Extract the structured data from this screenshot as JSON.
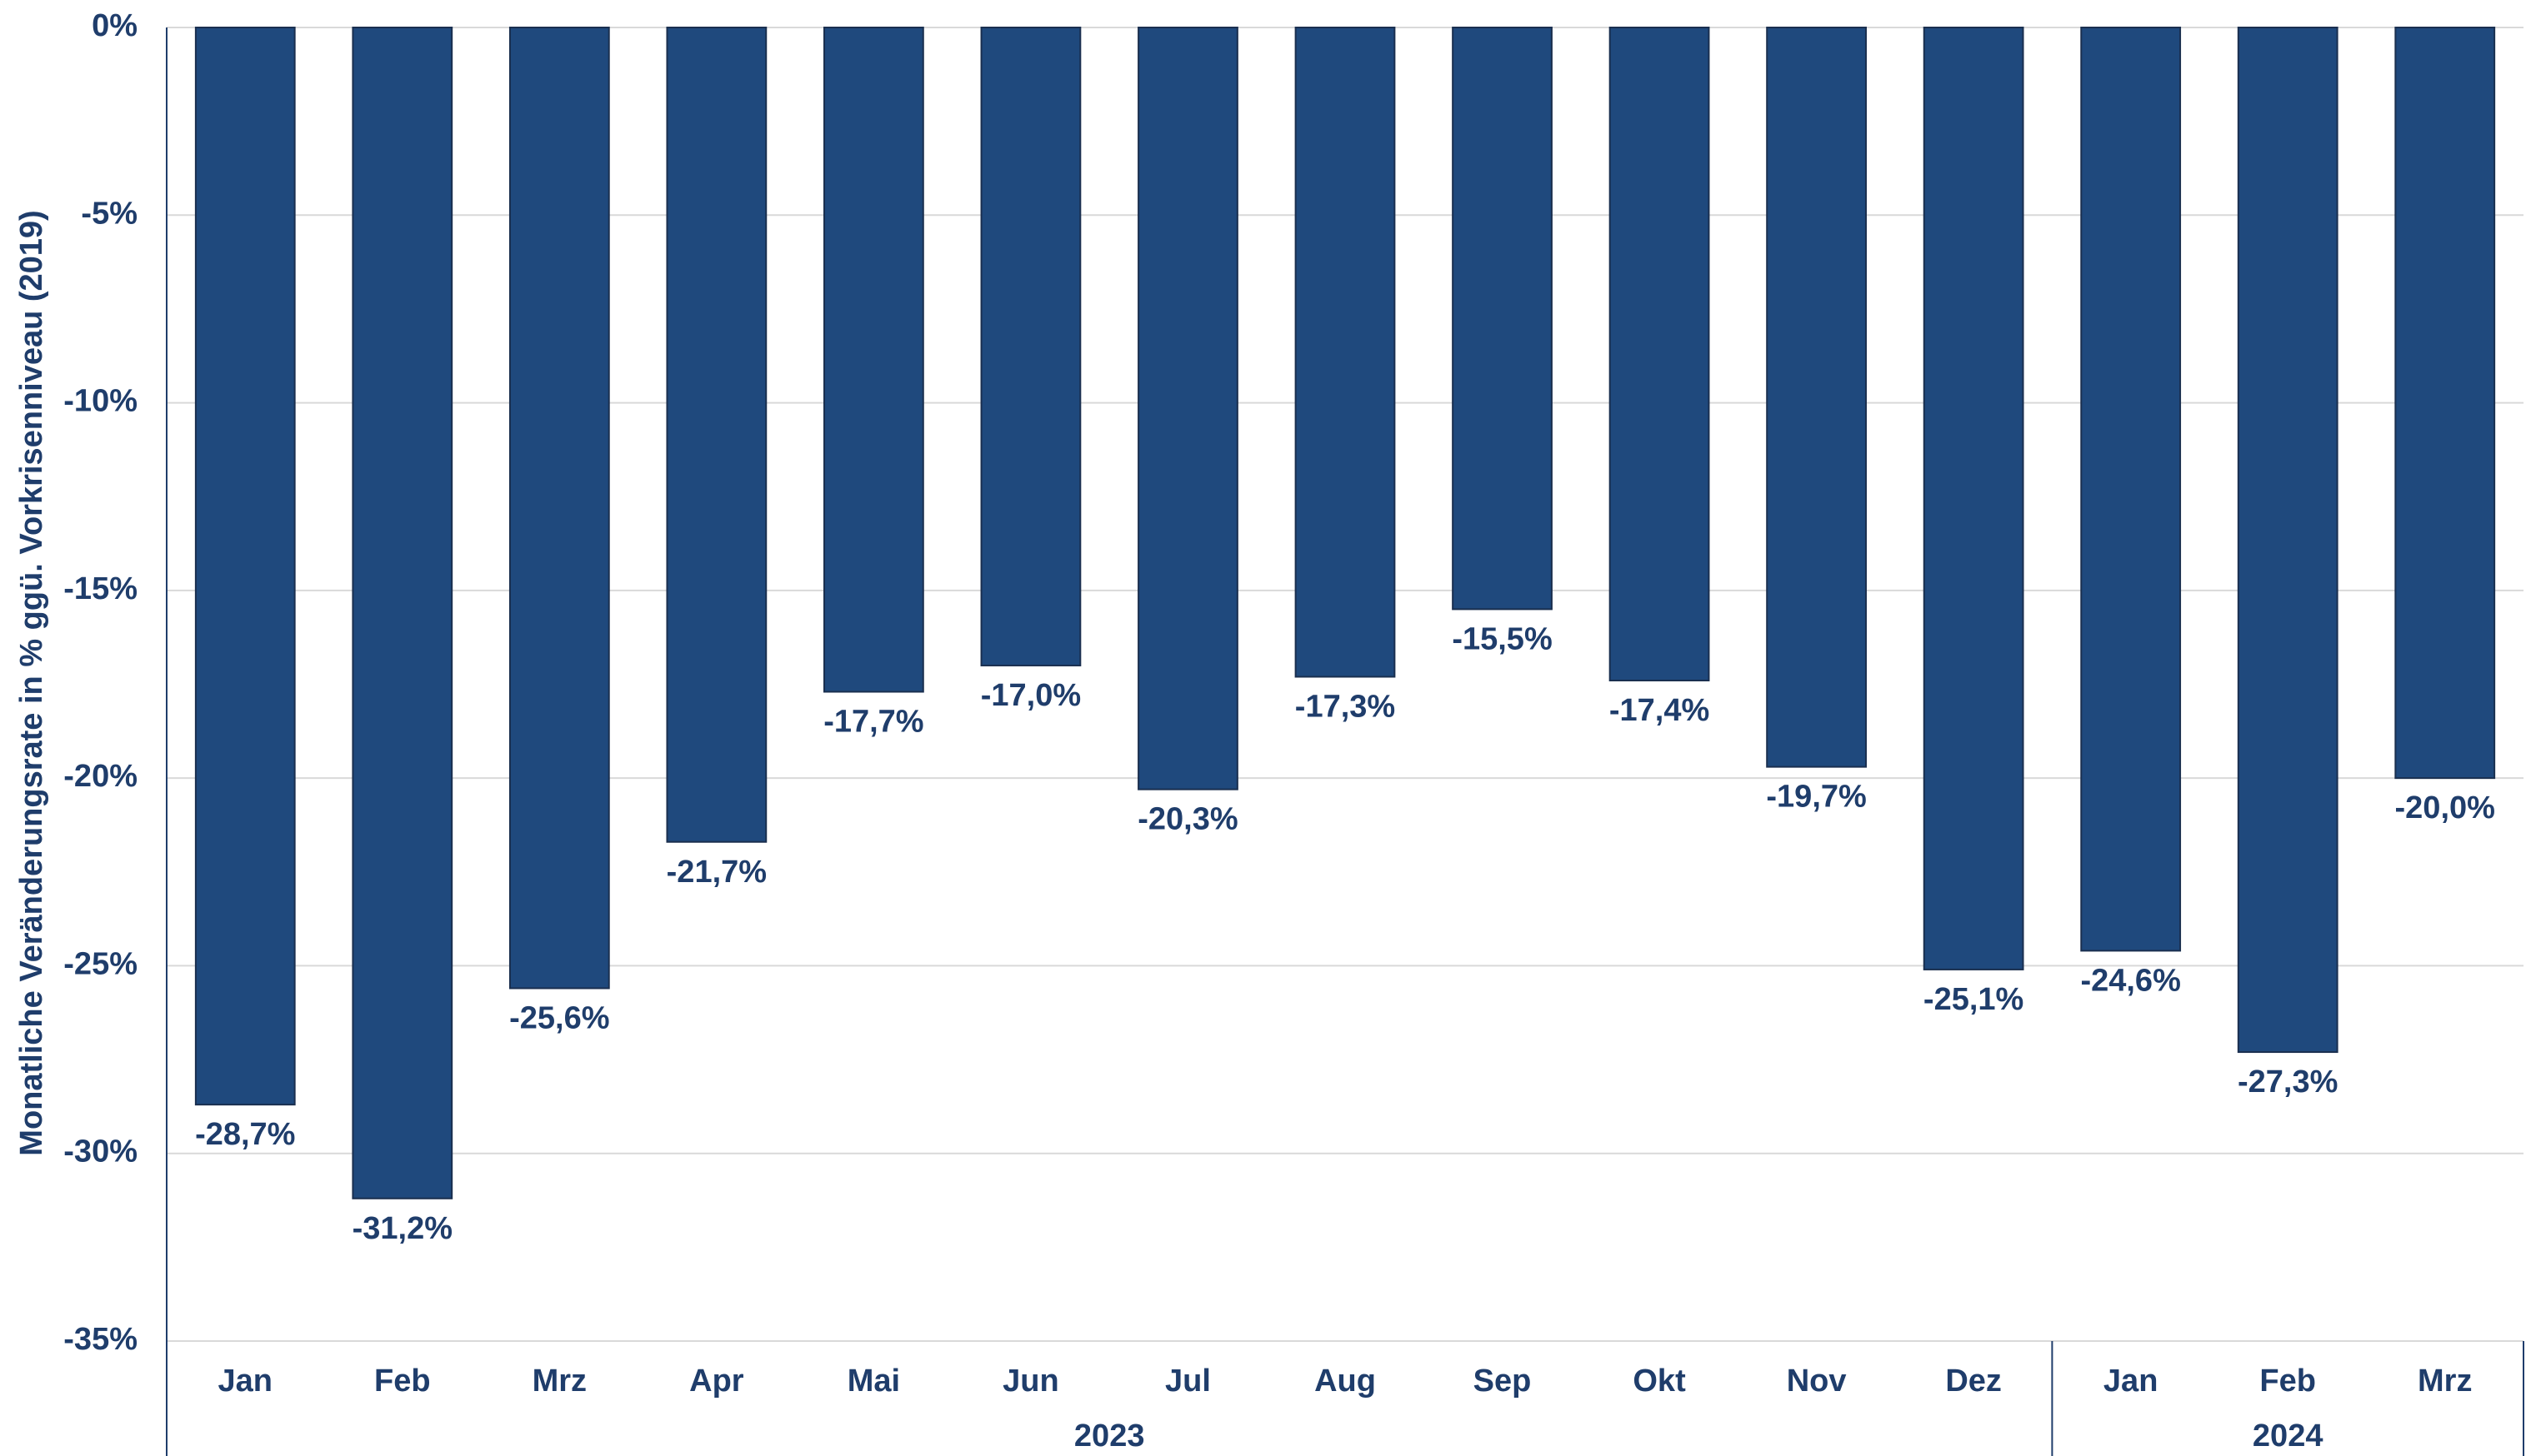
{
  "chart_data": {
    "type": "bar",
    "y_axis_label": "Monatliche Veränderungsrate in % ggü. Vorkrisenniveau (2019)",
    "categories": [
      "Jan",
      "Feb",
      "Mrz",
      "Apr",
      "Mai",
      "Jun",
      "Jul",
      "Aug",
      "Sep",
      "Okt",
      "Nov",
      "Dez",
      "Jan",
      "Feb",
      "Mrz"
    ],
    "groups": [
      {
        "label": "2023",
        "first": 0,
        "last": 11
      },
      {
        "label": "2024",
        "first": 12,
        "last": 14
      }
    ],
    "values": [
      -28.7,
      -31.2,
      -25.6,
      -21.7,
      -17.7,
      -17.0,
      -20.3,
      -17.3,
      -15.5,
      -17.4,
      -19.7,
      -25.1,
      -24.6,
      -27.3,
      -20.0
    ],
    "value_labels": [
      "-28,7%",
      "-31,2%",
      "-25,6%",
      "-21,7%",
      "-17,7%",
      "-17,0%",
      "-20,3%",
      "-17,3%",
      "-15,5%",
      "-17,4%",
      "-19,7%",
      "-25,1%",
      "-24,6%",
      "-27,3%",
      "-20,0%"
    ],
    "color": "#1f497d",
    "ylim": [
      -35,
      0
    ],
    "yticks": [
      {
        "value": 0,
        "label": "0%"
      },
      {
        "value": -5,
        "label": "-5%"
      },
      {
        "value": -10,
        "label": "-10%"
      },
      {
        "value": -15,
        "label": "-15%"
      },
      {
        "value": -20,
        "label": "-20%"
      },
      {
        "value": -25,
        "label": "-25%"
      },
      {
        "value": -30,
        "label": "-30%"
      },
      {
        "value": -35,
        "label": "-35%"
      }
    ],
    "grid": true
  }
}
